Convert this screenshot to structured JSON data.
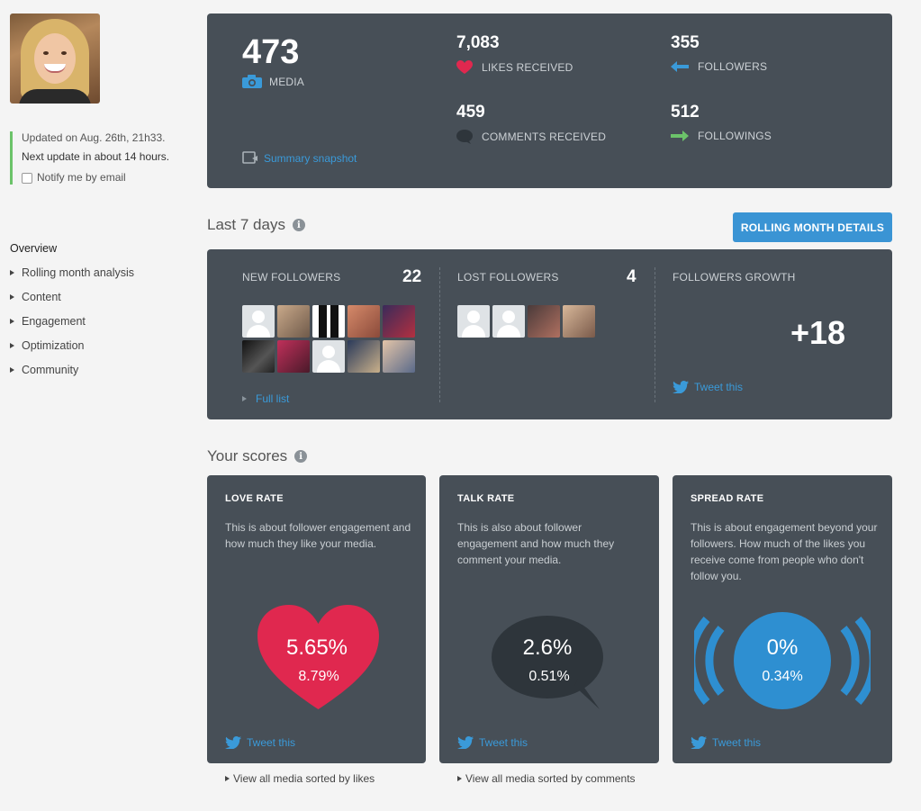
{
  "sidebar": {
    "update_line1": "Updated on Aug. 26th, 21h33.",
    "update_line2": "Next update in about 14 hours.",
    "notify_label": "Notify me by email",
    "nav_overview": "Overview",
    "nav_items": [
      "Rolling month analysis",
      "Content",
      "Engagement",
      "Optimization",
      "Community"
    ]
  },
  "summary": {
    "media_count": "473",
    "media_label": "MEDIA",
    "snapshot_link": "Summary snapshot",
    "likes_count": "7,083",
    "likes_label": "LIKES RECEIVED",
    "comments_count": "459",
    "comments_label": "COMMENTS RECEIVED",
    "followers_count": "355",
    "followers_label": "FOLLOWERS",
    "followings_count": "512",
    "followings_label": "FOLLOWINGS"
  },
  "last7": {
    "title": "Last 7 days",
    "rolling_button": "ROLLING MONTH DETAILS",
    "new_followers_label": "NEW FOLLOWERS",
    "new_followers_count": "22",
    "full_list_link": "Full list",
    "lost_followers_label": "LOST FOLLOWERS",
    "lost_followers_count": "4",
    "growth_label": "FOLLOWERS GROWTH",
    "growth_value": "+18",
    "tweet_label": "Tweet this"
  },
  "scores": {
    "title": "Your scores",
    "love": {
      "title": "LOVE RATE",
      "desc": "This is about follower engagement and how much they like your media.",
      "value": "5.65%",
      "sub": "8.79%",
      "tweet": "Tweet this",
      "below_link": "View all media sorted by likes"
    },
    "talk": {
      "title": "TALK RATE",
      "desc": "This is also about follower engagement and how much they comment your media.",
      "value": "2.6%",
      "sub": "0.51%",
      "tweet": "Tweet this",
      "below_link": "View all media sorted by comments"
    },
    "spread": {
      "title": "SPREAD RATE",
      "desc": "This is about engagement beyond your followers. How much of the likes you receive come from people who don't follow you.",
      "value": "0%",
      "sub": "0.34%",
      "tweet": "Tweet this"
    }
  },
  "colors": {
    "panel": "#474f57",
    "accent_blue": "#3a94d4",
    "heart_red": "#e0284f",
    "bubble_dark": "#2e353b",
    "update_green": "#6cc36a"
  },
  "icons": [
    "camera-icon",
    "heart-icon",
    "comment-icon",
    "arrow-left-icon",
    "arrow-right-icon",
    "snapshot-icon",
    "twitter-icon",
    "info-icon"
  ]
}
